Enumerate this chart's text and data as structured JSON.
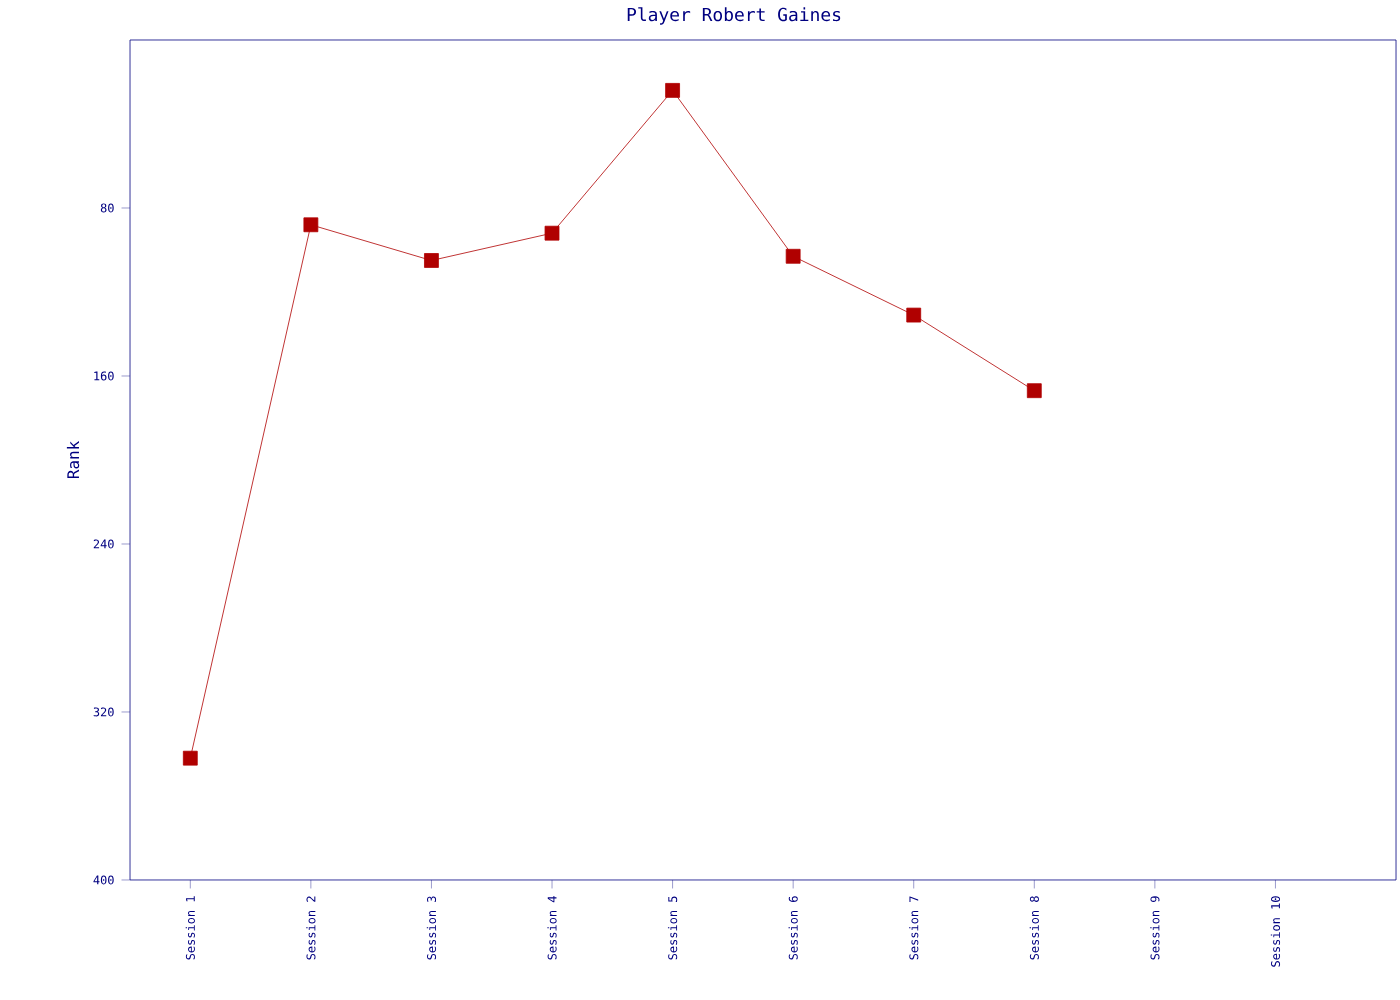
{
  "chart_data": {
    "type": "line",
    "title": "Player Robert Gaines",
    "ylabel": "Rank",
    "categories": [
      "Session 1",
      "Session 2",
      "Session 3",
      "Session 4",
      "Session 5",
      "Session 6",
      "Session 7",
      "Session 8",
      "Session 9",
      "Session 10"
    ],
    "series": [
      {
        "color": "#b00000",
        "values": [
          342,
          88,
          105,
          92,
          24,
          103,
          131,
          167,
          null,
          null
        ]
      }
    ],
    "ylim": [
      400,
      0
    ],
    "yticks": [
      80,
      160,
      240,
      320,
      400
    ],
    "marker": "square",
    "line_style": "solid"
  }
}
